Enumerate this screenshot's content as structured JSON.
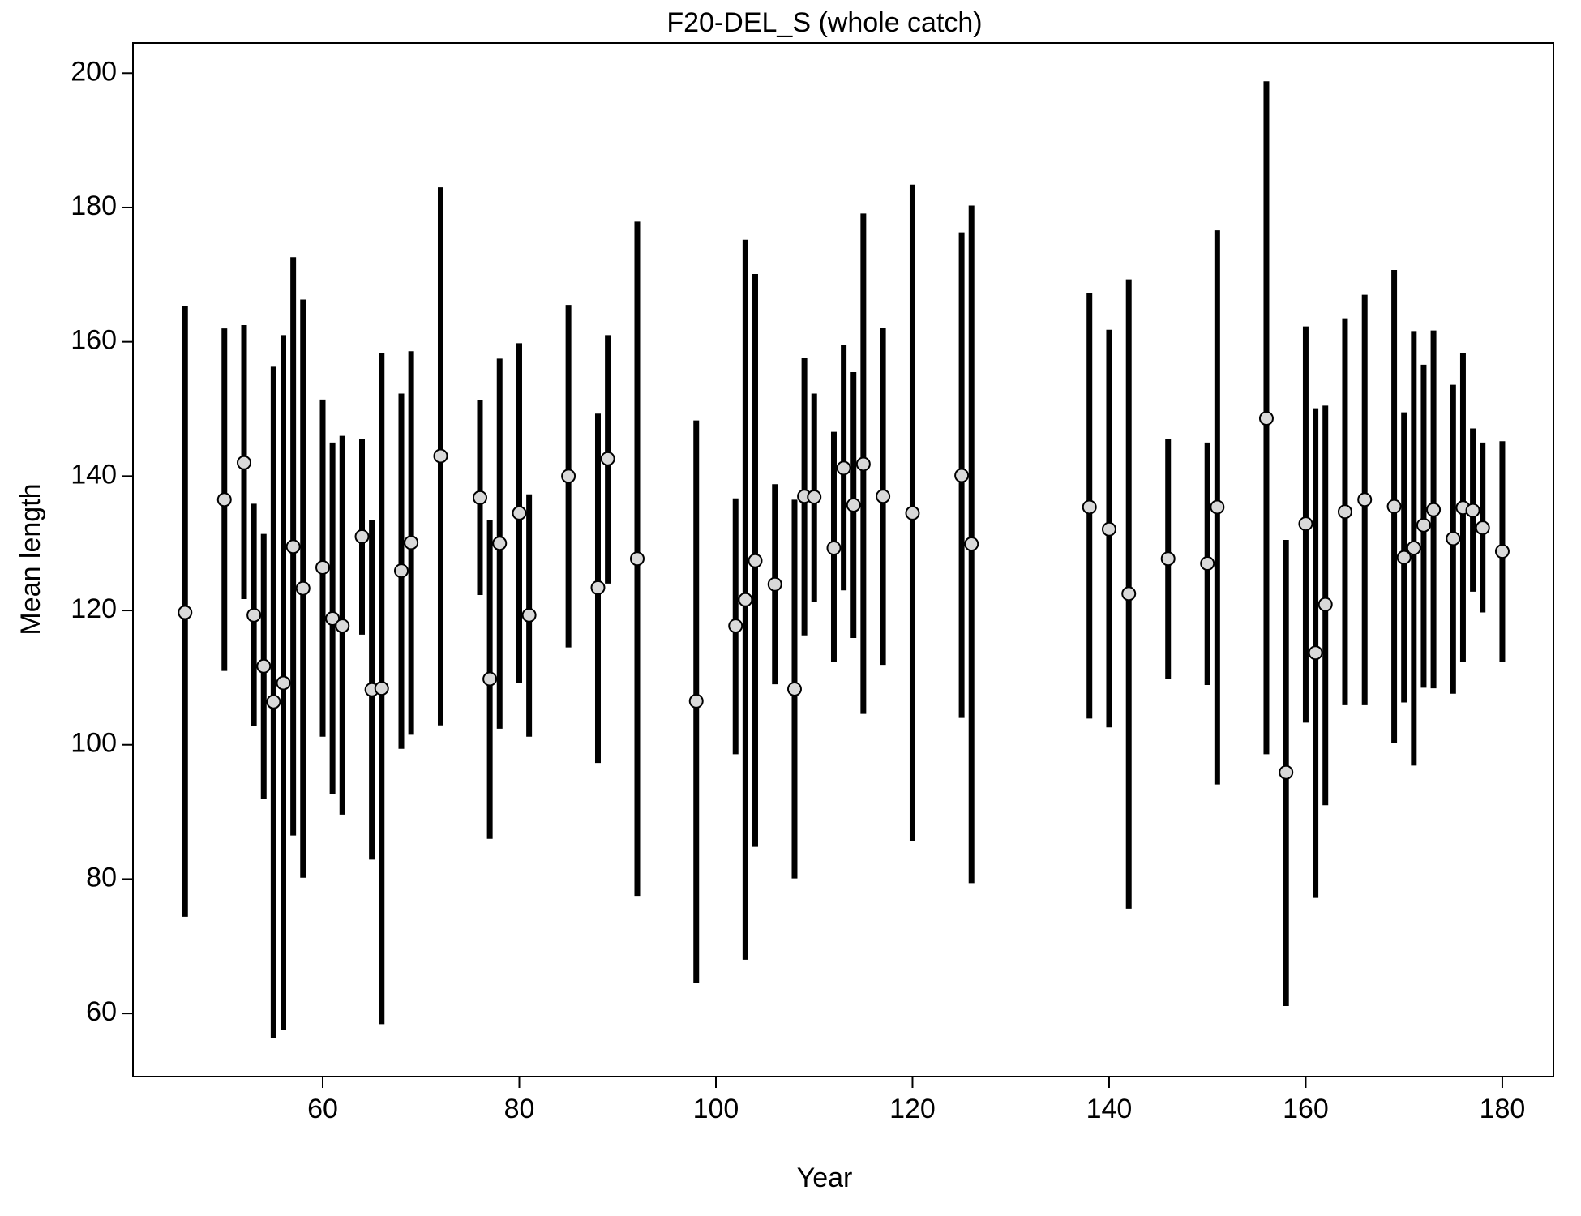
{
  "chart_data": {
    "type": "errorbar",
    "title": "F20-DEL_S (whole catch)",
    "x_label": "Year",
    "y_label": "Mean length",
    "xlim": [
      40.7,
      185.2
    ],
    "ylim": [
      50.6,
      204.5
    ],
    "xticks": [
      60,
      80,
      100,
      120,
      140,
      160,
      180
    ],
    "yticks": [
      60,
      80,
      100,
      120,
      140,
      160,
      180,
      200
    ],
    "series": [
      {
        "color": "#000000",
        "marker_color": "#d9d9d9",
        "x": [
          46,
          50,
          52,
          53,
          54,
          55,
          56,
          57,
          58,
          60,
          61,
          62,
          64,
          65,
          66,
          68,
          69,
          72,
          76,
          77,
          78,
          80,
          81,
          85,
          88,
          89,
          92,
          98,
          102,
          103,
          104,
          106,
          108,
          109,
          110,
          112,
          113,
          114,
          115,
          117,
          120,
          125,
          126,
          138,
          140,
          142,
          146,
          150,
          151,
          156,
          158,
          160,
          161,
          162,
          164,
          166,
          169,
          170,
          171,
          172,
          173,
          175,
          176,
          177,
          178,
          180
        ],
        "values": [
          119.7,
          136.5,
          142,
          119.3,
          111.7,
          106.4,
          109.2,
          129.5,
          123.3,
          126.4,
          118.8,
          117.7,
          131,
          108.2,
          108.4,
          125.9,
          130.1,
          143,
          136.8,
          109.8,
          130,
          134.5,
          119.3,
          140,
          123.4,
          142.6,
          127.7,
          106.5,
          117.7,
          121.6,
          127.4,
          123.9,
          108.3,
          137,
          136.9,
          129.3,
          141.2,
          135.7,
          141.8,
          137,
          134.5,
          140.1,
          129.9,
          135.4,
          132.1,
          122.5,
          127.7,
          127,
          135.4,
          148.6,
          95.9,
          132.9,
          113.7,
          120.9,
          134.7,
          136.5,
          135.5,
          127.9,
          129.3,
          132.7,
          135,
          130.7,
          135.3,
          134.9,
          132.3,
          128.8
        ],
        "lower": [
          74.4,
          111,
          121.7,
          102.8,
          92,
          56.3,
          57.5,
          86.5,
          80.2,
          101.2,
          92.6,
          89.6,
          116.4,
          82.9,
          58.4,
          99.4,
          101.5,
          102.9,
          122.3,
          86,
          102.4,
          109.2,
          101.2,
          114.5,
          97.3,
          124,
          77.5,
          64.6,
          98.6,
          68,
          84.8,
          109,
          80.1,
          116.3,
          121.3,
          112.3,
          123,
          115.9,
          104.6,
          111.9,
          85.6,
          104,
          79.4,
          103.9,
          102.6,
          75.6,
          109.8,
          108.9,
          94.1,
          98.6,
          61.1,
          103.3,
          77.2,
          91,
          105.9,
          105.9,
          100.3,
          106.3,
          96.9,
          108.5,
          108.4,
          107.6,
          112.4,
          122.8,
          119.7,
          112.3
        ],
        "upper": [
          165.3,
          162,
          162.5,
          135.9,
          131.4,
          156.3,
          161,
          172.6,
          166.3,
          151.4,
          145,
          146,
          145.6,
          133.5,
          158.3,
          152.3,
          158.6,
          183,
          151.3,
          133.5,
          157.5,
          159.8,
          137.3,
          165.5,
          149.3,
          161,
          177.9,
          148.3,
          136.7,
          175.2,
          170.1,
          138.8,
          136.5,
          157.6,
          152.3,
          146.6,
          159.5,
          155.5,
          179.1,
          162.1,
          183.4,
          176.3,
          180.3,
          167.2,
          161.8,
          169.3,
          145.5,
          145,
          176.6,
          198.8,
          130.5,
          162.3,
          150.1,
          150.5,
          163.5,
          167,
          170.7,
          149.5,
          161.6,
          156.6,
          161.7,
          153.6,
          158.3,
          147.1,
          145,
          145.2
        ]
      }
    ]
  }
}
